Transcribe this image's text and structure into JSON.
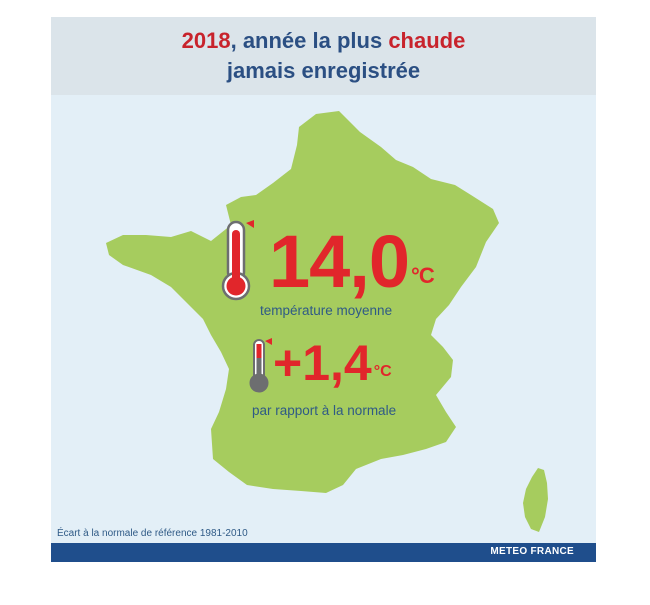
{
  "header": {
    "year": "2018",
    "title_mid": ", année la plus ",
    "title_hot": "chaude",
    "title_line2": "jamais enregistrée"
  },
  "main_stat": {
    "value": "14,0",
    "unit": "°C",
    "label": "température moyenne"
  },
  "diff_stat": {
    "value": "+1,4",
    "unit": "°C",
    "label": "par rapport à la normale"
  },
  "footnote": "Écart à la normale de référence 1981-2010",
  "footer": {
    "brand": "METEO FRANCE"
  },
  "colors": {
    "accent_red": "#e1262b",
    "title_blue": "#2b4f83",
    "map_green": "#a6cc5e",
    "footer_blue": "#1f4e8c"
  },
  "icons": [
    "thermometer-icon",
    "thermometer-icon"
  ]
}
